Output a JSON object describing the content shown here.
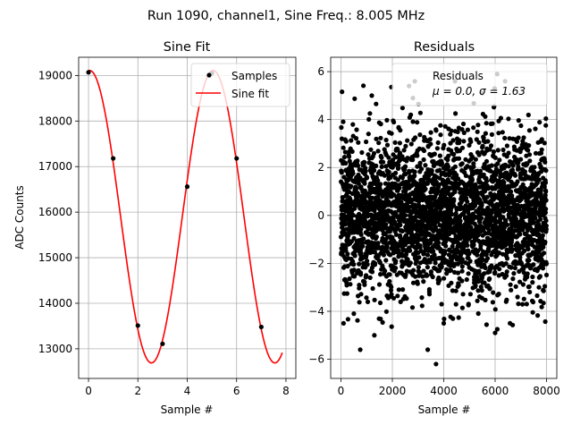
{
  "suptitle": "Run 1090, channel1, Sine Freq.: 8.005 MHz",
  "chart_data": [
    {
      "type": "line",
      "title": "Sine Fit",
      "xlabel": "Sample #",
      "ylabel": "ADC Counts",
      "xlim": [
        -0.4,
        8.4
      ],
      "ylim": [
        12350,
        19400
      ],
      "xticks": [
        0,
        2,
        4,
        6,
        8
      ],
      "yticks": [
        13000,
        14000,
        15000,
        16000,
        17000,
        18000,
        19000
      ],
      "grid": true,
      "legend_position": "top-right",
      "series": [
        {
          "name": "Samples",
          "kind": "scatter",
          "color": "#000000",
          "x": [
            0,
            1,
            2,
            3,
            4,
            5,
            6,
            7
          ],
          "y": [
            19070,
            17180,
            13510,
            13110,
            16560,
            19050,
            17180,
            13480
          ]
        },
        {
          "name": "Sine fit",
          "kind": "line",
          "color": "#ff0000",
          "model": {
            "offset": 15900,
            "amplitude": 3210,
            "cycles_per_sample": 0.2,
            "peak_at_sample": 0.05
          },
          "x_range": [
            0,
            7.85
          ]
        }
      ]
    },
    {
      "type": "scatter",
      "title": "Residuals",
      "xlabel": "Sample #",
      "xlim": [
        -400,
        8400
      ],
      "ylim": [
        -6.8,
        6.6
      ],
      "xticks": [
        0,
        2000,
        4000,
        6000,
        8000
      ],
      "yticks": [
        -6,
        -4,
        -2,
        0,
        2,
        4,
        6
      ],
      "grid": true,
      "legend_position": "top-right",
      "series": [
        {
          "name": "Residuals",
          "color": "#000000",
          "distribution": {
            "count": 8000,
            "x_range": [
              0,
              8000
            ],
            "mean": 0.0,
            "sigma": 1.63
          }
        }
      ],
      "legend_label_line1": "Residuals",
      "legend_label_line2": "μ = 0.0, σ = 1.63",
      "annotations": [
        {
          "x": 3700,
          "y": -6.2
        },
        {
          "x": 750,
          "y": -5.6
        },
        {
          "x": 6080,
          "y": 5.9
        },
        {
          "x": 2650,
          "y": 5.4
        },
        {
          "x": 100,
          "y": -4.5
        },
        {
          "x": 5980,
          "y": 5.3
        },
        {
          "x": 1200,
          "y": 5.0
        },
        {
          "x": 6000,
          "y": -4.9
        },
        {
          "x": 4000,
          "y": -4.5
        },
        {
          "x": 1300,
          "y": -5.0
        },
        {
          "x": 5500,
          "y": 5.1
        },
        {
          "x": 2800,
          "y": 4.9
        }
      ]
    }
  ]
}
